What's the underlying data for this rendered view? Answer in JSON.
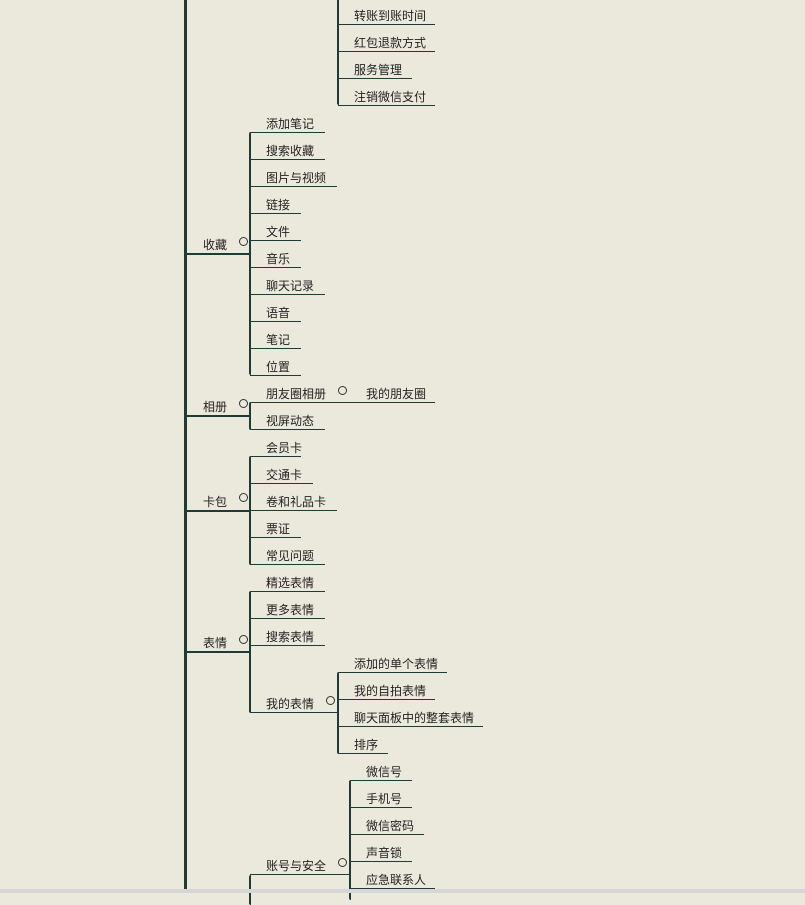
{
  "colors": {
    "background": "#ebe8dc",
    "line": "#1e3b38"
  },
  "top_group": [
    {
      "label": "转账到账时间"
    },
    {
      "label": "红包退款方式"
    },
    {
      "label": "服务管理"
    },
    {
      "label": "注销微信支付"
    }
  ],
  "branches": [
    {
      "label": "收藏",
      "children": [
        {
          "label": "添加笔记"
        },
        {
          "label": "搜索收藏"
        },
        {
          "label": "图片与视频"
        },
        {
          "label": "链接"
        },
        {
          "label": "文件"
        },
        {
          "label": "音乐"
        },
        {
          "label": "聊天记录"
        },
        {
          "label": "语音"
        },
        {
          "label": "笔记"
        },
        {
          "label": "位置"
        }
      ]
    },
    {
      "label": "相册",
      "children": [
        {
          "label": "朋友圈相册",
          "children": [
            {
              "label": "我的朋友圈"
            }
          ]
        },
        {
          "label": "视屏动态"
        }
      ]
    },
    {
      "label": "卡包",
      "children": [
        {
          "label": "会员卡"
        },
        {
          "label": "交通卡"
        },
        {
          "label": "卷和礼品卡"
        },
        {
          "label": "票证"
        },
        {
          "label": "常见问题"
        }
      ]
    },
    {
      "label": "表情",
      "children": [
        {
          "label": "精选表情"
        },
        {
          "label": "更多表情"
        },
        {
          "label": "搜索表情"
        },
        {
          "label": "我的表情",
          "children": [
            {
              "label": "添加的单个表情"
            },
            {
              "label": "我的自拍表情"
            },
            {
              "label": "聊天面板中的整套表情"
            },
            {
              "label": "排序"
            }
          ]
        }
      ]
    },
    {
      "children": [
        {
          "label": "账号与安全",
          "children": [
            {
              "label": "微信号"
            },
            {
              "label": "手机号"
            },
            {
              "label": "微信密码"
            },
            {
              "label": "声音锁"
            },
            {
              "label": "应急联系人"
            }
          ]
        }
      ]
    }
  ]
}
